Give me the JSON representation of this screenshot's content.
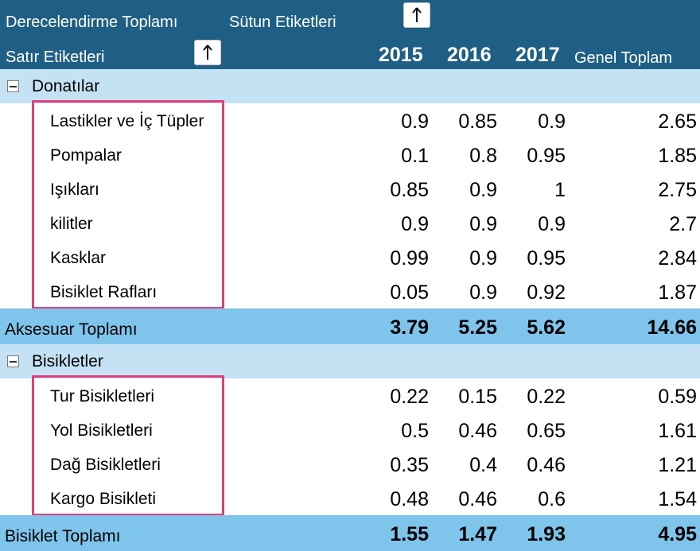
{
  "header": {
    "values_label": "Derecelendirme Toplamı",
    "column_labels": "Sütun Etiketleri",
    "row_labels": "Satır Etiketleri",
    "years": [
      "2015",
      "2016",
      "2017"
    ],
    "grand_total": "Genel Toplam",
    "sort_icon": "arrow-up-icon"
  },
  "groups": [
    {
      "name": "Donatılar",
      "toggle_icon": "minus",
      "items": [
        {
          "label": "Lastikler ve İç Tüpler",
          "values": [
            "0.9",
            "0.85",
            "0.9"
          ],
          "total": "2.65"
        },
        {
          "label": "Pompalar",
          "values": [
            "0.1",
            "0.8",
            "0.95"
          ],
          "total": "1.85"
        },
        {
          "label": "Işıkları",
          "values": [
            "0.85",
            "0.9",
            "1"
          ],
          "total": "2.75"
        },
        {
          "label": " kilitler",
          "values": [
            "0.9",
            "0.9",
            "0.9"
          ],
          "total": "2.7"
        },
        {
          "label": "Kasklar",
          "values": [
            "0.99",
            "0.9",
            "0.95"
          ],
          "total": "2.84"
        },
        {
          "label": "Bisiklet Rafları",
          "values": [
            "0.05",
            "0.9",
            "0.92"
          ],
          "total": "1.87"
        }
      ],
      "subtotal": {
        "label": "Aksesuar Toplamı",
        "values": [
          "3.79",
          "5.25",
          "5.62"
        ],
        "total": "14.66"
      }
    },
    {
      "name": "Bisikletler",
      "toggle_icon": "minus",
      "items": [
        {
          "label": "Tur Bisikletleri",
          "values": [
            "0.22",
            "0.15",
            "0.22"
          ],
          "total": "0.59"
        },
        {
          "label": "Yol Bisikletleri",
          "values": [
            "0.5",
            "0.46",
            "0.65"
          ],
          "total": "1.61"
        },
        {
          "label": "Dağ Bisikletleri",
          "values": [
            "0.35",
            "0.4",
            "0.46"
          ],
          "total": "1.21"
        },
        {
          "label": "Kargo Bisikleti",
          "values": [
            "0.48",
            "0.46",
            "0.6"
          ],
          "total": "1.54"
        }
      ],
      "subtotal": {
        "label": "Bisiklet Toplamı",
        "values": [
          "1.55",
          "1.47",
          "1.93"
        ],
        "total": "4.95"
      }
    }
  ],
  "colors": {
    "header_bg": "#1f5f85",
    "group_bg": "#c5e2f5",
    "subtotal_bg": "#7fc4ea",
    "highlight": "#e0407a"
  }
}
